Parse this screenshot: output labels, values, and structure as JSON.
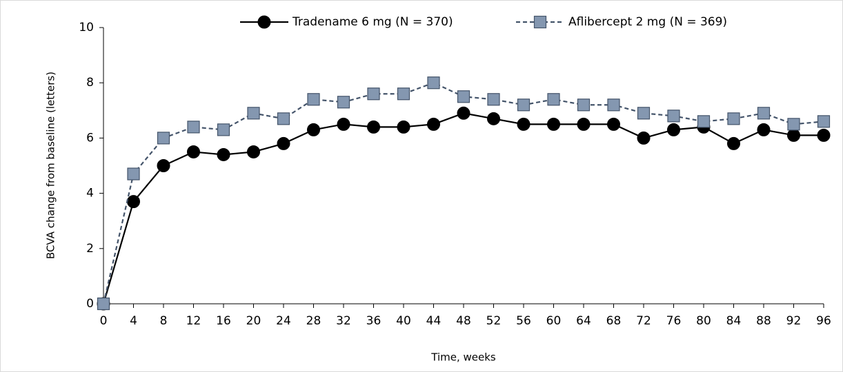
{
  "chart_data": {
    "type": "line",
    "x_label": "Time, weeks",
    "y_label": "BCVA change from baseline (letters)",
    "x": [
      0,
      4,
      8,
      12,
      16,
      20,
      24,
      28,
      32,
      36,
      40,
      44,
      48,
      52,
      56,
      60,
      64,
      68,
      72,
      76,
      80,
      84,
      88,
      92,
      96
    ],
    "series": [
      {
        "name": "Tradename 6 mg (N = 370)",
        "color": "#000000",
        "line_color": "#000000",
        "marker": "circle",
        "line_style": "solid",
        "values": [
          0,
          3.7,
          5.0,
          5.5,
          5.4,
          5.5,
          5.8,
          6.3,
          6.5,
          6.4,
          6.4,
          6.5,
          6.9,
          6.7,
          6.5,
          6.5,
          6.5,
          6.5,
          6.0,
          6.3,
          6.4,
          5.8,
          6.3,
          6.1,
          6.1
        ]
      },
      {
        "name": "Aflibercept 2 mg (N = 369)",
        "color": "#8497b0",
        "line_color": "#44546a",
        "marker": "square",
        "line_style": "dashed",
        "values": [
          0,
          4.7,
          6.0,
          6.4,
          6.3,
          6.9,
          6.7,
          7.4,
          7.3,
          7.6,
          7.6,
          8.0,
          7.5,
          7.4,
          7.2,
          7.4,
          7.2,
          7.2,
          6.9,
          6.8,
          6.6,
          6.7,
          6.9,
          6.5,
          6.6
        ]
      }
    ],
    "xlim": [
      0,
      96
    ],
    "xticks": [
      0,
      4,
      8,
      12,
      16,
      20,
      24,
      28,
      32,
      36,
      40,
      44,
      48,
      52,
      56,
      60,
      64,
      68,
      72,
      76,
      80,
      84,
      88,
      92,
      96
    ],
    "ylim": [
      0,
      10
    ],
    "yticks": [
      0,
      2,
      4,
      6,
      8,
      10
    ],
    "grid": false,
    "legend": "top"
  }
}
